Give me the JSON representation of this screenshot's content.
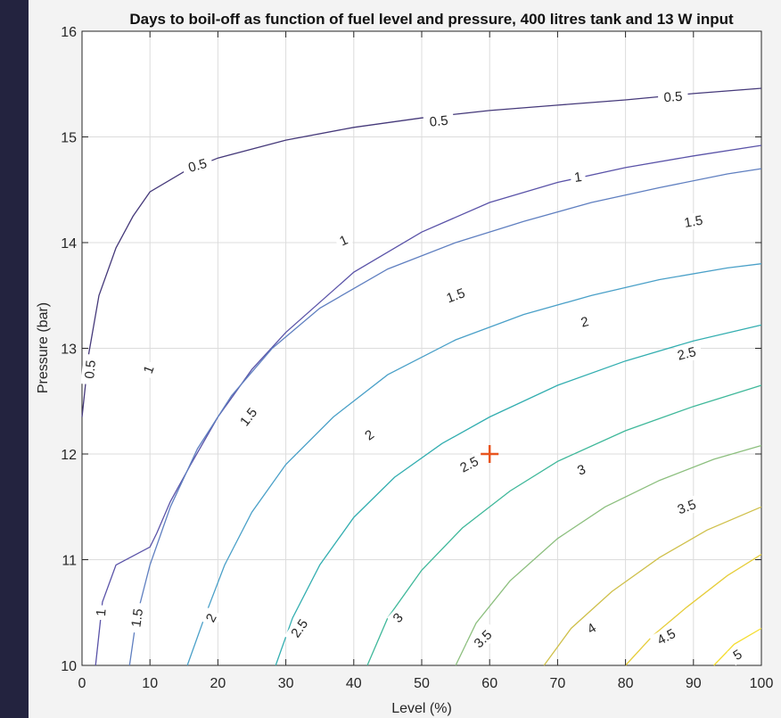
{
  "chart_data": {
    "type": "contour",
    "title": "Days to boil-off as function of fuel level and pressure, 400 litres tank and 13 W input",
    "xlabel": "Level (%)",
    "ylabel": "Pressure (bar)",
    "xlim": [
      0,
      100
    ],
    "ylim": [
      10,
      16
    ],
    "x_ticks": [
      0,
      10,
      20,
      30,
      40,
      50,
      60,
      70,
      80,
      90,
      100
    ],
    "y_ticks": [
      10,
      11,
      12,
      13,
      14,
      15,
      16
    ],
    "grid": true,
    "colormap": "parula",
    "levels": [
      {
        "value": "0.5",
        "color": "#45397a",
        "curves": [
          {
            "points": [
              [
                0,
                12.35
              ],
              [
                1,
                12.95
              ],
              [
                2.5,
                13.5
              ],
              [
                5,
                13.95
              ],
              [
                7.5,
                14.25
              ],
              [
                10,
                14.48
              ],
              [
                15,
                14.67
              ],
              [
                20,
                14.8
              ],
              [
                30,
                14.97
              ],
              [
                40,
                15.09
              ],
              [
                50,
                15.18
              ],
              [
                60,
                15.25
              ],
              [
                70,
                15.3
              ],
              [
                80,
                15.35
              ],
              [
                90,
                15.41
              ],
              [
                100,
                15.46
              ]
            ]
          }
        ],
        "labels": [
          {
            "text": "0.5",
            "x": 1.2,
            "y": 12.8,
            "angle": -85
          },
          {
            "text": "0.5",
            "x": 17,
            "y": 14.73,
            "angle": -16
          },
          {
            "text": "0.5",
            "x": 52.5,
            "y": 15.15,
            "angle": -6
          },
          {
            "text": "0.5",
            "x": 87,
            "y": 15.38,
            "angle": -4
          }
        ]
      },
      {
        "value": "1",
        "color": "#5a53a8",
        "curves": [
          {
            "points": [
              [
                2,
                10
              ],
              [
                3,
                10.6
              ],
              [
                5,
                10.95
              ],
              [
                10,
                11.12
              ],
              [
                10,
                11.12
              ],
              [
                11,
                11.25
              ],
              [
                13,
                11.55
              ],
              [
                16,
                11.9
              ],
              [
                20,
                12.35
              ],
              [
                25,
                12.8
              ],
              [
                30,
                13.15
              ],
              [
                40,
                13.72
              ],
              [
                50,
                14.1
              ],
              [
                60,
                14.38
              ],
              [
                70,
                14.57
              ],
              [
                80,
                14.71
              ],
              [
                90,
                14.82
              ],
              [
                100,
                14.92
              ]
            ]
          }
        ],
        "labels": [
          {
            "text": "1",
            "x": 2.8,
            "y": 10.5,
            "angle": -85
          },
          {
            "text": "1",
            "x": 9.8,
            "y": 12.8,
            "angle": -70
          },
          {
            "text": "1",
            "x": 38.5,
            "y": 14.02,
            "angle": -24
          },
          {
            "text": "1",
            "x": 73,
            "y": 14.62,
            "angle": -8
          }
        ]
      },
      {
        "value": "1.5",
        "color": "#5f7fc0",
        "curves": [
          {
            "points": [
              [
                7,
                10
              ],
              [
                8,
                10.45
              ],
              [
                10,
                10.95
              ],
              [
                13,
                11.5
              ],
              [
                17,
                12.05
              ],
              [
                22,
                12.55
              ],
              [
                28,
                13.0
              ],
              [
                35,
                13.38
              ],
              [
                45,
                13.75
              ],
              [
                55,
                14.0
              ],
              [
                65,
                14.2
              ],
              [
                75,
                14.38
              ],
              [
                85,
                14.52
              ],
              [
                95,
                14.65
              ],
              [
                100,
                14.7
              ]
            ]
          }
        ],
        "labels": [
          {
            "text": "1.5",
            "x": 8.1,
            "y": 10.45,
            "angle": -82
          },
          {
            "text": "1.5",
            "x": 24.5,
            "y": 12.35,
            "angle": -52
          },
          {
            "text": "1.5",
            "x": 55,
            "y": 13.5,
            "angle": -20
          },
          {
            "text": "1.5",
            "x": 90,
            "y": 14.2,
            "angle": -10
          }
        ]
      },
      {
        "value": "2",
        "color": "#4aa0c8",
        "curves": [
          {
            "points": [
              [
                15.5,
                10
              ],
              [
                18,
                10.45
              ],
              [
                21,
                10.95
              ],
              [
                25,
                11.45
              ],
              [
                30,
                11.9
              ],
              [
                37,
                12.35
              ],
              [
                45,
                12.75
              ],
              [
                55,
                13.08
              ],
              [
                65,
                13.32
              ],
              [
                75,
                13.5
              ],
              [
                85,
                13.65
              ],
              [
                95,
                13.76
              ],
              [
                100,
                13.8
              ]
            ]
          }
        ],
        "labels": [
          {
            "text": "2",
            "x": 19,
            "y": 10.45,
            "angle": -62
          },
          {
            "text": "2",
            "x": 42.3,
            "y": 12.18,
            "angle": -36
          },
          {
            "text": "2",
            "x": 74,
            "y": 13.25,
            "angle": -14
          }
        ]
      },
      {
        "value": "2.5",
        "color": "#33aeb0",
        "curves": [
          {
            "points": [
              [
                28.5,
                10
              ],
              [
                31,
                10.45
              ],
              [
                35,
                10.95
              ],
              [
                40,
                11.4
              ],
              [
                46,
                11.78
              ],
              [
                53,
                12.1
              ],
              [
                60,
                12.35
              ],
              [
                70,
                12.65
              ],
              [
                80,
                12.88
              ],
              [
                90,
                13.07
              ],
              [
                100,
                13.22
              ]
            ]
          }
        ],
        "labels": [
          {
            "text": "2.5",
            "x": 32,
            "y": 10.35,
            "angle": -55
          },
          {
            "text": "2.5",
            "x": 57,
            "y": 11.9,
            "angle": -27
          },
          {
            "text": "2.5",
            "x": 89,
            "y": 12.95,
            "angle": -14
          }
        ]
      },
      {
        "value": "3",
        "color": "#3fb89a",
        "curves": [
          {
            "points": [
              [
                42,
                10
              ],
              [
                45,
                10.45
              ],
              [
                50,
                10.9
              ],
              [
                56,
                11.3
              ],
              [
                63,
                11.65
              ],
              [
                70,
                11.93
              ],
              [
                80,
                12.22
              ],
              [
                90,
                12.45
              ],
              [
                100,
                12.65
              ]
            ]
          }
        ],
        "labels": [
          {
            "text": "3",
            "x": 46.5,
            "y": 10.45,
            "angle": -48
          },
          {
            "text": "3",
            "x": 73.5,
            "y": 11.85,
            "angle": -22
          }
        ]
      },
      {
        "value": "3.5",
        "color": "#8cbf7e",
        "curves": [
          {
            "points": [
              [
                55,
                10
              ],
              [
                58,
                10.4
              ],
              [
                63,
                10.8
              ],
              [
                70,
                11.2
              ],
              [
                77,
                11.5
              ],
              [
                85,
                11.75
              ],
              [
                93,
                11.95
              ],
              [
                100,
                12.08
              ]
            ]
          }
        ],
        "labels": [
          {
            "text": "3.5",
            "x": 59,
            "y": 10.25,
            "angle": -44
          },
          {
            "text": "3.5",
            "x": 89,
            "y": 11.5,
            "angle": -20
          }
        ]
      },
      {
        "value": "4",
        "color": "#cfc04b",
        "curves": [
          {
            "points": [
              [
                68,
                10
              ],
              [
                72,
                10.35
              ],
              [
                78,
                10.7
              ],
              [
                85,
                11.02
              ],
              [
                92,
                11.28
              ],
              [
                100,
                11.5
              ]
            ]
          }
        ],
        "labels": [
          {
            "text": "4",
            "x": 75,
            "y": 10.35,
            "angle": -32
          }
        ]
      },
      {
        "value": "4.5",
        "color": "#e6cd3a",
        "curves": [
          {
            "points": [
              [
                80,
                10
              ],
              [
                84,
                10.28
              ],
              [
                89,
                10.55
              ],
              [
                95,
                10.85
              ],
              [
                100,
                11.05
              ]
            ]
          }
        ],
        "labels": [
          {
            "text": "4.5",
            "x": 86,
            "y": 10.27,
            "angle": -28
          }
        ]
      },
      {
        "value": "5",
        "color": "#f5dd2e",
        "curves": [
          {
            "points": [
              [
                93,
                10
              ],
              [
                96,
                10.2
              ],
              [
                100,
                10.35
              ]
            ]
          }
        ],
        "labels": [
          {
            "text": "5",
            "x": 96.5,
            "y": 10.1,
            "angle": -32
          }
        ]
      }
    ],
    "marker": {
      "shape": "+",
      "x": 60,
      "y": 12.0,
      "color": "#e8541e"
    }
  }
}
